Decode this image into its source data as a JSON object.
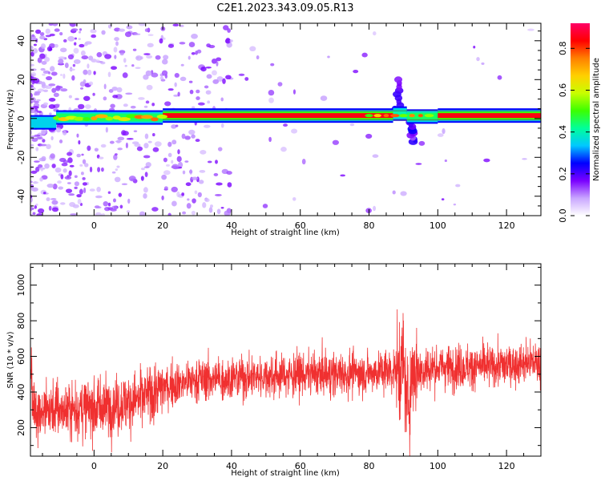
{
  "title": "C2E1.2023.343.09.05.R13",
  "chart_data": [
    {
      "type": "heatmap",
      "xlabel": "Height of straight line (km)",
      "ylabel": "Frequency (Hz)",
      "xlim": [
        -18.5,
        130
      ],
      "ylim": [
        -50,
        49
      ],
      "xticks": [
        0,
        20,
        40,
        60,
        80,
        100,
        120
      ],
      "yticks": [
        -40,
        -20,
        0,
        20,
        40
      ],
      "colorbar": {
        "label": "Normalized spectral amplitude",
        "range": [
          0,
          0.92
        ],
        "ticks": [
          0.0,
          0.2,
          0.4,
          0.6,
          0.8
        ],
        "colors": [
          "#ffffff",
          "#c9a6ff",
          "#7a00ff",
          "#0000ff",
          "#00c8ff",
          "#00ff9a",
          "#3cff00",
          "#c8ff00",
          "#ffd000",
          "#ff8000",
          "#ff0000",
          "#ff0066"
        ]
      },
      "band": [
        {
          "x": [
            -18.5,
            -11
          ],
          "freq": -2,
          "level": 0.35
        },
        {
          "x": [
            -11,
            20
          ],
          "freq": 0.5,
          "level": 0.45
        },
        {
          "x": [
            20,
            87
          ],
          "freq": 1.5,
          "level": 0.85
        },
        {
          "x": [
            87,
            91
          ],
          "freq": 2.5,
          "level": 0.4
        },
        {
          "x": [
            91,
            100
          ],
          "freq": 1,
          "level": 0.45
        },
        {
          "x": [
            100,
            130
          ],
          "freq": 1.5,
          "level": 0.85
        }
      ],
      "features": [
        {
          "x": 88.5,
          "freq_range": [
            3,
            20
          ],
          "level": 0.25
        },
        {
          "x": 92.5,
          "freq_range": [
            -12,
            -2
          ],
          "level": 0.25
        }
      ]
    },
    {
      "type": "line",
      "xlabel": "Height of straight line (km)",
      "ylabel": "SNR (10 * v/v)",
      "xlim": [
        -18.5,
        130
      ],
      "ylim": [
        40,
        1120
      ],
      "xticks": [
        0,
        20,
        40,
        60,
        80,
        100,
        120
      ],
      "yticks": [
        200,
        400,
        600,
        800,
        1000
      ],
      "color": "#f03030",
      "series": [
        {
          "x": [
            -18,
            -10,
            0,
            10,
            18,
            20,
            30,
            40,
            50,
            60,
            70,
            80,
            88,
            90,
            91,
            93,
            95,
            100,
            110,
            120,
            130
          ],
          "y": [
            300,
            300,
            310,
            340,
            400,
            430,
            470,
            480,
            490,
            500,
            500,
            510,
            520,
            560,
            300,
            540,
            520,
            540,
            540,
            550,
            570
          ]
        }
      ]
    }
  ]
}
